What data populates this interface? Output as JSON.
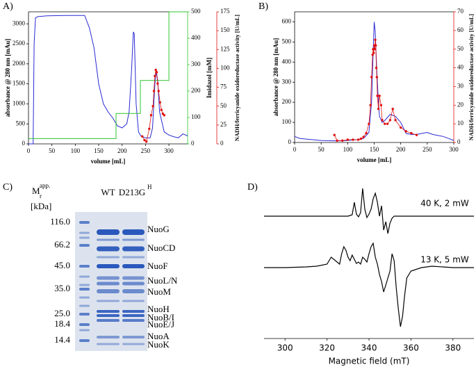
{
  "chart_data": [
    {
      "type": "line",
      "label": "A)",
      "xlabel": "volume [mL]",
      "ylabel": "absorbance @ 280 nm [mAu]",
      "y2label": "Imidazol [mM]",
      "y3label": "NADH/ferricyanide oxidoreductase activity [U/mL]",
      "xlim": [
        0,
        340
      ],
      "xticks": [
        0,
        50,
        100,
        150,
        200,
        250,
        300
      ],
      "ylim": [
        0,
        3300
      ],
      "yticks": [
        0,
        500,
        1000,
        1500,
        2000,
        2500,
        3000
      ],
      "y2lim": [
        0,
        500
      ],
      "y2ticks": [
        0,
        100,
        200,
        300,
        400,
        500
      ],
      "y3lim": [
        0,
        175
      ],
      "y3ticks": [
        0,
        25,
        50,
        75,
        100,
        125,
        150,
        175
      ],
      "series": [
        {
          "color": "#2a2ad4",
          "x": [
            0,
            10,
            12,
            15,
            20,
            40,
            80,
            120,
            130,
            140,
            150,
            160,
            170,
            180,
            190,
            200,
            210,
            215,
            220,
            224,
            226,
            230,
            235,
            240,
            250,
            260,
            265,
            270,
            273,
            276,
            280,
            290,
            300,
            310,
            320,
            330,
            340
          ],
          "values": [
            0,
            0,
            2500,
            3150,
            3180,
            3200,
            3210,
            3210,
            2900,
            2400,
            1500,
            1000,
            800,
            650,
            450,
            400,
            500,
            800,
            1800,
            2800,
            2750,
            1000,
            300,
            200,
            150,
            150,
            400,
            1500,
            1800,
            1600,
            800,
            300,
            220,
            180,
            150,
            250,
            200
          ]
        },
        {
          "color": "#2fc42f",
          "axis": "y2",
          "x": [
            0,
            187,
            187,
            239,
            239,
            300,
            300,
            340
          ],
          "values": [
            20,
            20,
            115,
            115,
            240,
            240,
            500,
            500
          ]
        },
        {
          "color": "#e01010",
          "axis": "y3",
          "marker": true,
          "x": [
            243,
            248,
            252,
            258,
            262,
            266,
            268,
            270,
            272,
            274,
            276,
            278,
            281,
            284,
            287,
            290
          ],
          "values": [
            10,
            5,
            3,
            20,
            38,
            50,
            70,
            90,
            98,
            95,
            80,
            70,
            55,
            45,
            40,
            38
          ]
        }
      ]
    },
    {
      "type": "line",
      "label": "B)",
      "xlabel": "volume [mL]",
      "ylabel": "absorbance @ 280 nm [mAu]",
      "y3label": "NADH/ferricyanide oxidoreductase activity [U/mL]",
      "xlim": [
        0,
        300
      ],
      "xticks": [
        0,
        50,
        100,
        150,
        200,
        250,
        300
      ],
      "ylim": [
        0,
        650
      ],
      "yticks": [
        0,
        100,
        200,
        300,
        400,
        500,
        600
      ],
      "y3lim": [
        0,
        70
      ],
      "y3ticks": [
        0,
        10,
        20,
        30,
        40,
        50,
        60,
        70
      ],
      "series": [
        {
          "color": "#2a2ad4",
          "x": [
            0,
            10,
            50,
            80,
            100,
            120,
            130,
            140,
            145,
            148,
            150,
            152,
            155,
            158,
            160,
            165,
            170,
            180,
            190,
            200,
            210,
            220,
            230,
            240,
            250,
            260,
            270,
            280,
            290,
            300
          ],
          "values": [
            30,
            20,
            10,
            8,
            10,
            15,
            20,
            50,
            200,
            450,
            600,
            550,
            350,
            200,
            130,
            100,
            110,
            140,
            130,
            100,
            45,
            40,
            40,
            45,
            50,
            40,
            35,
            30,
            20,
            10
          ]
        },
        {
          "color": "#e01010",
          "axis": "y3",
          "marker": true,
          "x": [
            75,
            80,
            90,
            100,
            110,
            120,
            125,
            130,
            135,
            140,
            143,
            145,
            147,
            148,
            149,
            150,
            151,
            152,
            153,
            154,
            155,
            156,
            158,
            160,
            163,
            165,
            170,
            175,
            180,
            185,
            190,
            200,
            210,
            220,
            230
          ],
          "values": [
            4,
            1,
            1,
            1.5,
            1.5,
            1.5,
            2,
            3,
            5,
            10,
            20,
            35,
            47,
            50,
            48,
            52,
            50,
            55,
            52,
            40,
            35,
            25,
            18,
            25,
            20,
            12,
            10,
            10,
            12,
            18,
            12,
            8,
            6,
            5,
            4
          ]
        }
      ]
    },
    {
      "type": "line",
      "label": "D)",
      "xlabel": "Magnetic field (mT)",
      "xlim": [
        290,
        390
      ],
      "xticks": [
        300,
        320,
        340,
        360,
        380
      ],
      "series": [
        {
          "name": "40 K, 2 mW",
          "color": "#000000",
          "x": [
            290,
            300,
            320,
            330,
            332,
            333,
            334,
            335,
            336,
            337,
            338,
            339,
            340,
            341,
            342,
            343,
            344,
            345,
            346,
            347,
            348,
            349,
            350,
            351,
            352,
            355,
            360,
            370,
            390
          ],
          "values": [
            0,
            0,
            0,
            0,
            2,
            20,
            3,
            -1,
            5,
            40,
            10,
            -2,
            3,
            10,
            25,
            33,
            20,
            0,
            15,
            -20,
            -8,
            -25,
            -10,
            -3,
            0,
            0,
            0,
            0,
            0
          ]
        },
        {
          "name": "13 K, 5 mW",
          "color": "#000000",
          "x": [
            290,
            300,
            310,
            315,
            320,
            322,
            324,
            326,
            327,
            328,
            329,
            330,
            331,
            332,
            333,
            334,
            335,
            336,
            337,
            338,
            339,
            340,
            341,
            342,
            343,
            344,
            345,
            346,
            347,
            348,
            349,
            350,
            351,
            352,
            353,
            354,
            355,
            356,
            357,
            358,
            360,
            365,
            370,
            380,
            390
          ],
          "values": [
            0,
            0,
            1,
            2,
            5,
            15,
            10,
            5,
            20,
            30,
            25,
            15,
            10,
            18,
            12,
            6,
            8,
            5,
            15,
            12,
            8,
            20,
            30,
            35,
            15,
            5,
            -10,
            -20,
            -35,
            -25,
            -15,
            -5,
            20,
            10,
            -30,
            -60,
            -85,
            -70,
            -40,
            -15,
            -5,
            0,
            2,
            0,
            0
          ]
        }
      ]
    }
  ],
  "gel": {
    "label": "C)",
    "mr_symbol": "M",
    "mr_subscript": "r",
    "mr_superscript": "app.",
    "unit": "[kDa]",
    "lanes": [
      {
        "name": "WT"
      },
      {
        "name": "D213G",
        "sup": "H"
      }
    ],
    "markers": [
      "116.0",
      "66.2",
      "45.0",
      "35.0",
      "25.0",
      "18.4",
      "14.4"
    ],
    "bands": [
      "NuoG",
      "NuoCD",
      "NuoF",
      "NuoL/N",
      "NuoM",
      "NuoH",
      "NuoB/I",
      "NuoE/J",
      "NuoA",
      "NuoK"
    ]
  }
}
